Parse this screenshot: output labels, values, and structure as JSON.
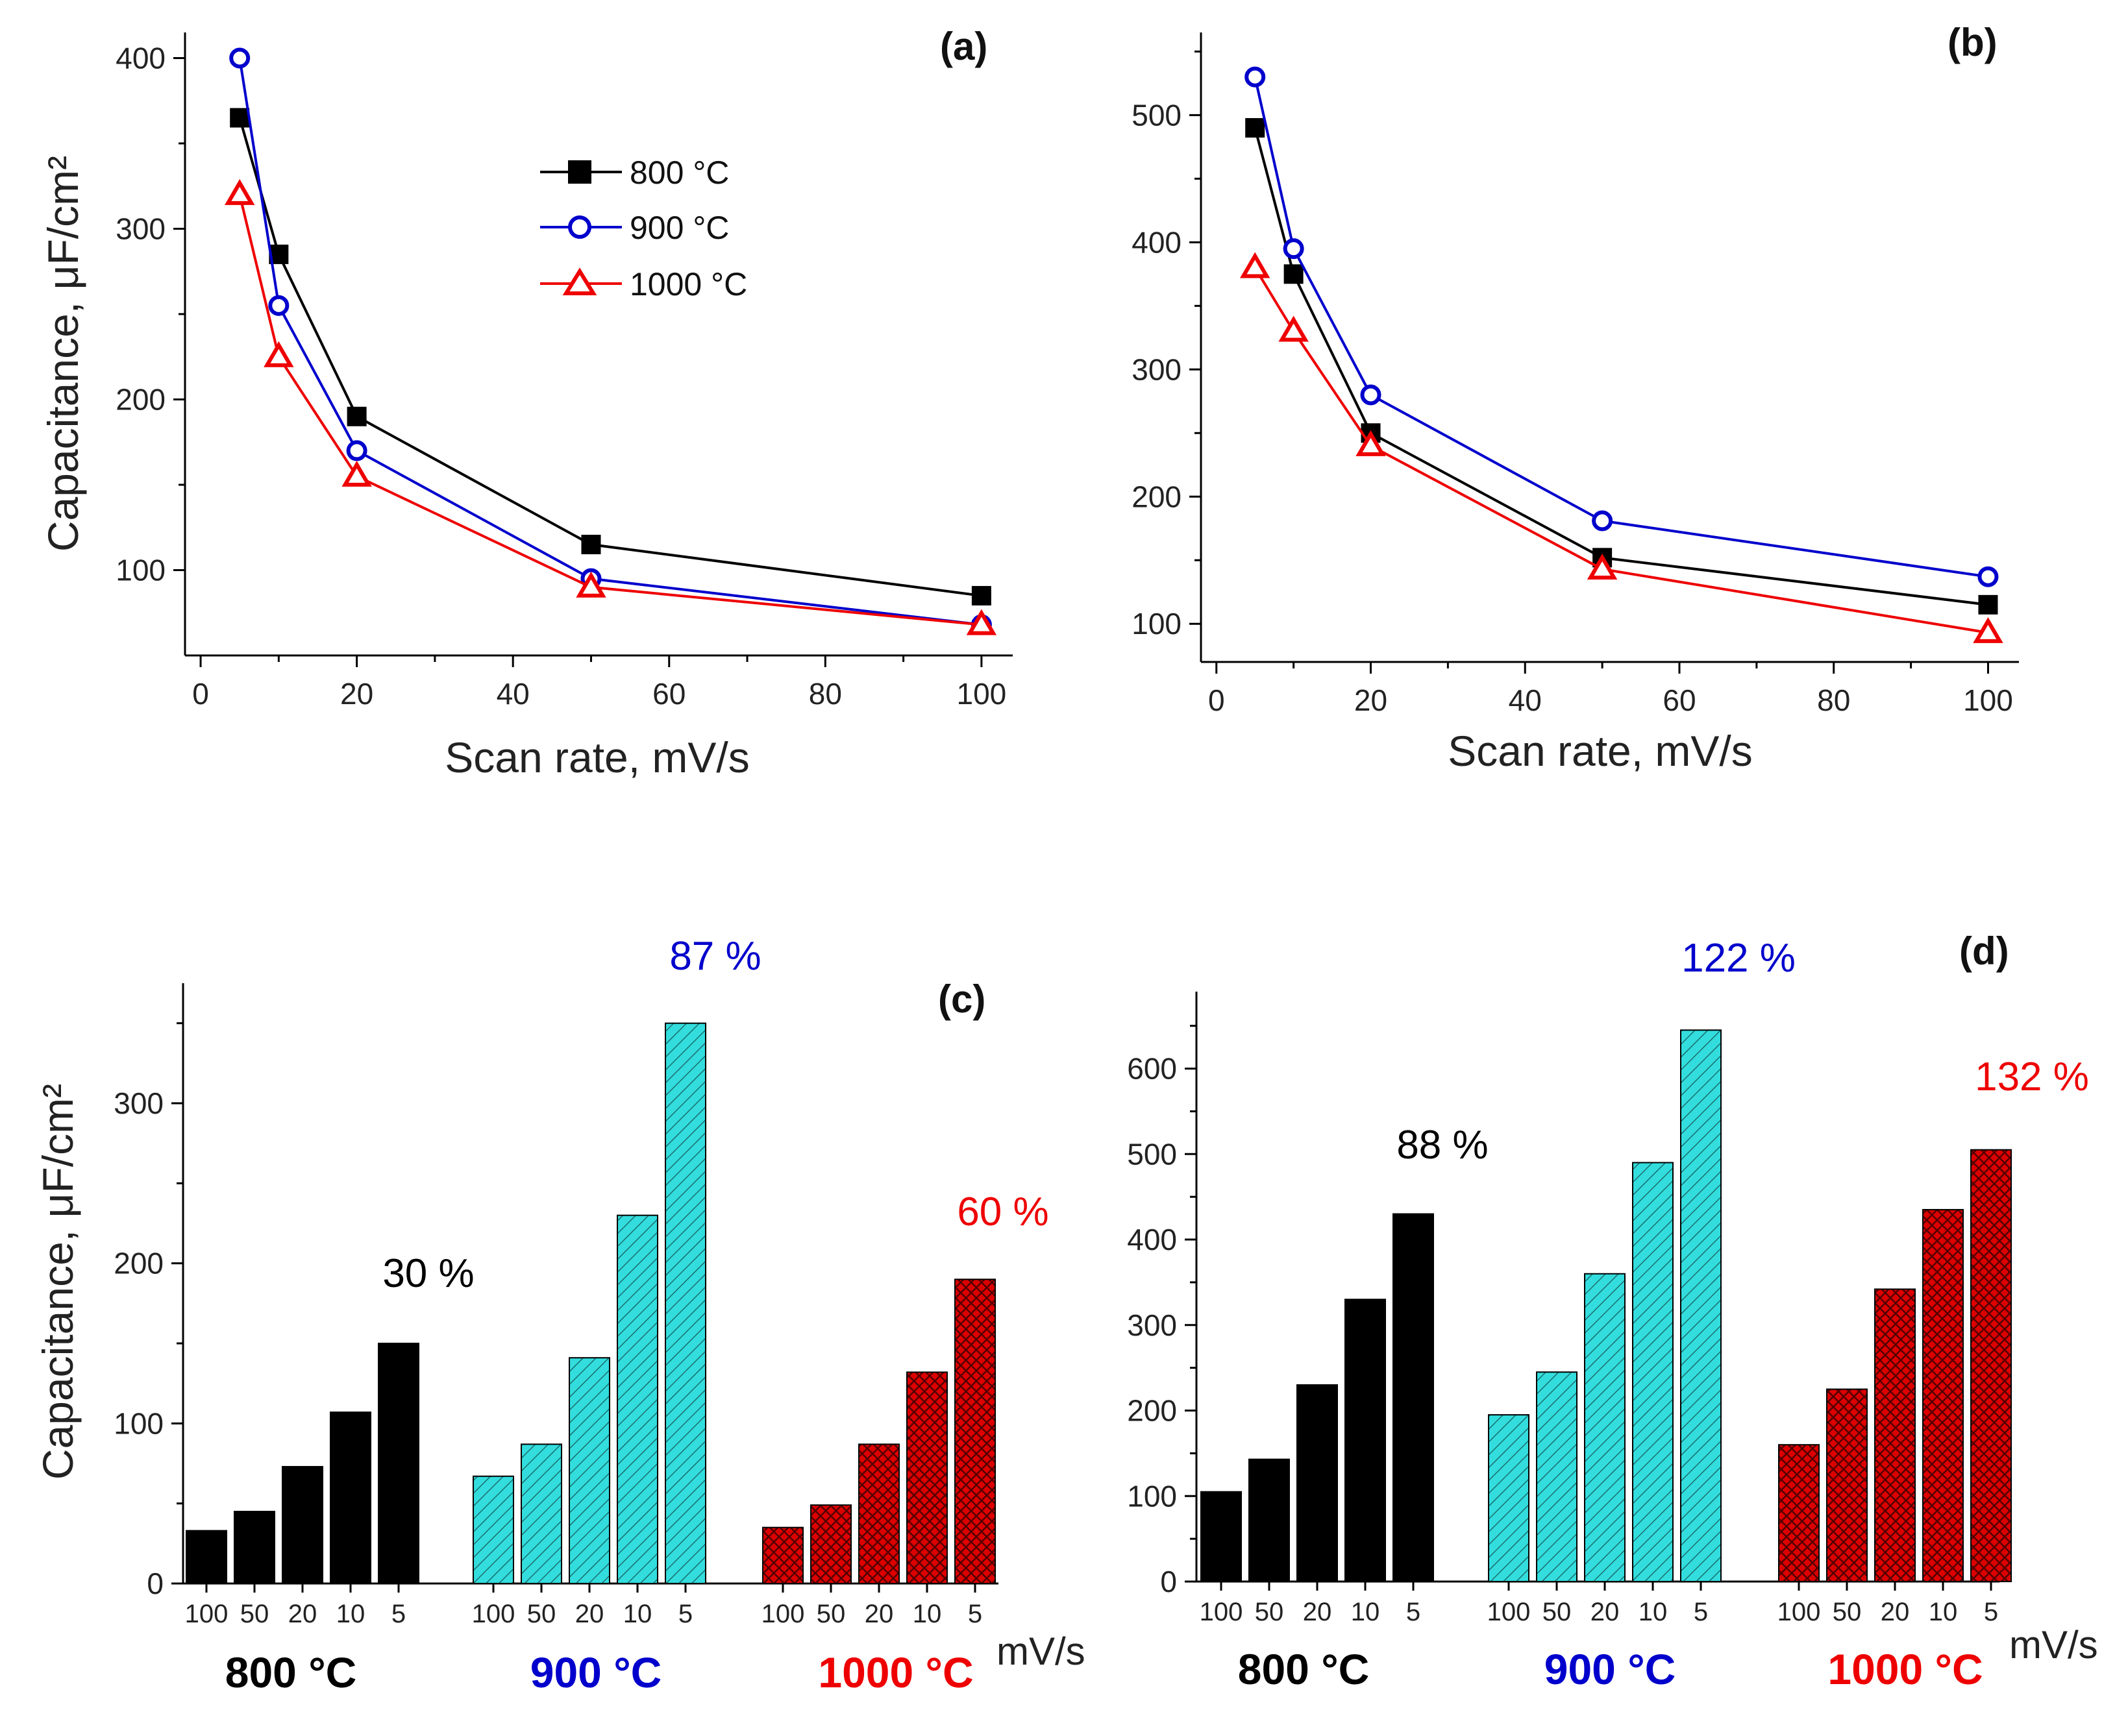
{
  "colors": {
    "800": "#000000",
    "900": "#0000cc",
    "1000": "#ee0000",
    "cyan_bar": "#33dddd",
    "red_bar": "#dd0000"
  },
  "chart_data": [
    {
      "id": "a",
      "type": "line",
      "panel_label": "(a)",
      "xlabel": "Scan rate, mV/s",
      "ylabel": "Capacitance, μF/cm²",
      "xlim": [
        -2,
        104
      ],
      "ylim": [
        50,
        415
      ],
      "xticks": [
        0,
        20,
        40,
        60,
        80,
        100
      ],
      "yticks": [
        100,
        200,
        300,
        400
      ],
      "x": [
        5,
        10,
        20,
        50,
        100
      ],
      "series": [
        {
          "name": "800 °C",
          "color_key": "800",
          "marker": "square",
          "values": [
            365,
            285,
            190,
            115,
            85
          ]
        },
        {
          "name": "900 °C",
          "color_key": "900",
          "marker": "circle",
          "values": [
            400,
            255,
            170,
            95,
            68
          ]
        },
        {
          "name": "1000 °C",
          "color_key": "1000",
          "marker": "triangle",
          "values": [
            320,
            225,
            155,
            90,
            68
          ]
        }
      ],
      "legend": [
        {
          "label": "800 °C",
          "color_key": "800",
          "marker": "square"
        },
        {
          "label": "900 °C",
          "color_key": "900",
          "marker": "circle"
        },
        {
          "label": "1000 °C",
          "color_key": "1000",
          "marker": "triangle"
        }
      ]
    },
    {
      "id": "b",
      "type": "line",
      "panel_label": "(b)",
      "xlabel": "Scan rate, mV/s",
      "ylabel": "",
      "xlim": [
        -2,
        104
      ],
      "ylim": [
        70,
        565
      ],
      "xticks": [
        0,
        20,
        40,
        60,
        80,
        100
      ],
      "yticks": [
        100,
        200,
        300,
        400,
        500
      ],
      "x": [
        5,
        10,
        20,
        50,
        100
      ],
      "series": [
        {
          "name": "800 °C",
          "color_key": "800",
          "marker": "square",
          "values": [
            490,
            375,
            250,
            152,
            115
          ]
        },
        {
          "name": "900 °C",
          "color_key": "900",
          "marker": "circle",
          "values": [
            530,
            395,
            280,
            181,
            137
          ]
        },
        {
          "name": "1000 °C",
          "color_key": "1000",
          "marker": "triangle",
          "values": [
            380,
            330,
            240,
            143,
            93
          ]
        }
      ]
    },
    {
      "id": "c",
      "type": "bar",
      "panel_label": "(c)",
      "ylabel": "Capacitance, μF/cm²",
      "ylim": [
        0,
        375
      ],
      "yticks": [
        0,
        100,
        200,
        300
      ],
      "bar_labels": [
        "100",
        "50",
        "20",
        "10",
        "5"
      ],
      "unit_label": "mV/s",
      "groups": [
        {
          "name": "800 °C",
          "color_key": "800",
          "pattern": "solid",
          "values": [
            33,
            45,
            73,
            107,
            150
          ],
          "percent": "30 %"
        },
        {
          "name": "900 °C",
          "color_key": "900",
          "pattern": "hatch",
          "values": [
            67,
            87,
            141,
            230,
            350
          ],
          "percent": "87 %"
        },
        {
          "name": "1000 °C",
          "color_key": "1000",
          "pattern": "cross",
          "values": [
            35,
            49,
            87,
            132,
            190
          ],
          "percent": "60 %"
        }
      ]
    },
    {
      "id": "d",
      "type": "bar",
      "panel_label": "(d)",
      "ylabel": "",
      "ylim": [
        0,
        690
      ],
      "yticks": [
        0,
        100,
        200,
        300,
        400,
        500,
        600
      ],
      "bar_labels": [
        "100",
        "50",
        "20",
        "10",
        "5"
      ],
      "unit_label": "mV/s",
      "groups": [
        {
          "name": "800 °C",
          "color_key": "800",
          "pattern": "solid",
          "values": [
            105,
            143,
            230,
            330,
            430
          ],
          "percent": "88 %"
        },
        {
          "name": "900 °C",
          "color_key": "900",
          "pattern": "hatch",
          "values": [
            195,
            245,
            360,
            490,
            645
          ],
          "percent": "122 %"
        },
        {
          "name": "1000 °C",
          "color_key": "1000",
          "pattern": "cross",
          "values": [
            160,
            225,
            342,
            435,
            505
          ],
          "percent": "132 %"
        }
      ]
    }
  ]
}
